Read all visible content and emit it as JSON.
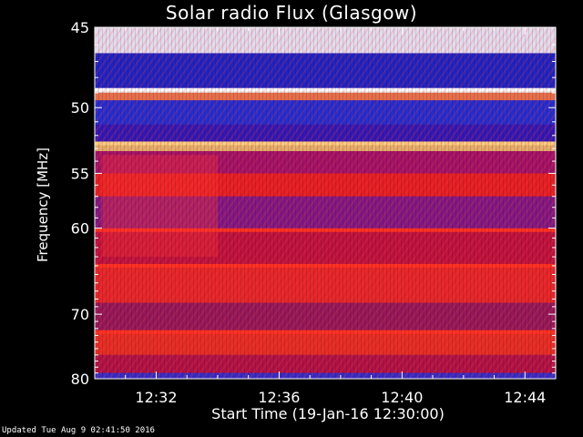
{
  "chart_data": {
    "type": "heatmap",
    "title": "Solar radio Flux (Glasgow)",
    "xlabel": "Start Time (19-Jan-16 12:30:00)",
    "ylabel": "Frequency [MHz]",
    "x_ticks": [
      "12:32",
      "12:36",
      "12:40",
      "12:44"
    ],
    "x_tick_minutes": [
      2,
      6,
      10,
      14
    ],
    "xlim_minutes": [
      0,
      15
    ],
    "y_ticks": [
      45,
      50,
      55,
      60,
      70,
      80
    ],
    "ylim": [
      45,
      80
    ],
    "scale": "reciprocal",
    "bands": [
      {
        "freq": 45.0,
        "color": "#ffffff"
      },
      {
        "freq": 46.5,
        "color": "#1a24c8"
      },
      {
        "freq": 48.7,
        "color": "#ffeecc"
      },
      {
        "freq": 49.0,
        "color": "#ff8040"
      },
      {
        "freq": 49.5,
        "color": "#2030d8"
      },
      {
        "freq": 51.2,
        "color": "#3018b8"
      },
      {
        "freq": 52.5,
        "color": "#ffcc66"
      },
      {
        "freq": 53.2,
        "color": "#b01060"
      },
      {
        "freq": 55.0,
        "color": "#ff2010"
      },
      {
        "freq": 57.0,
        "color": "#8a1880"
      },
      {
        "freq": 60.2,
        "color": "#d01030"
      },
      {
        "freq": 64.0,
        "color": "#ff2818"
      },
      {
        "freq": 68.5,
        "color": "#a01850"
      },
      {
        "freq": 72.5,
        "color": "#ff3010"
      },
      {
        "freq": 76.0,
        "color": "#c01038"
      },
      {
        "freq": 79.0,
        "color": "#3030d0"
      }
    ],
    "burst_window_minutes": [
      2,
      4
    ]
  },
  "footer": {
    "updated": "Updated Tue Aug  9 02:41:50 2016"
  }
}
